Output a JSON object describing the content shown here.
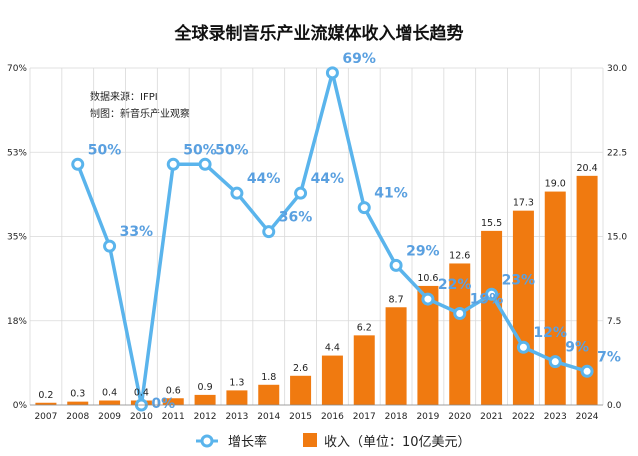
{
  "chart_data": {
    "type": "bar+line",
    "title": "全球录制音乐产业流媒体收入增长趋势",
    "source_lines": [
      "数据来源：IFPI",
      "制图：新音乐产业观察"
    ],
    "categories": [
      "2007",
      "2008",
      "2009",
      "2010",
      "2011",
      "2012",
      "2013",
      "2014",
      "2015",
      "2016",
      "2017",
      "2018",
      "2019",
      "2020",
      "2021",
      "2022",
      "2023",
      "2024"
    ],
    "series": [
      {
        "name": "收入（单位：10亿美元）",
        "kind": "bar",
        "axis": "right",
        "color": "#f07a10",
        "values": [
          0.2,
          0.3,
          0.4,
          0.4,
          0.6,
          0.9,
          1.3,
          1.8,
          2.6,
          4.4,
          6.2,
          8.7,
          10.6,
          12.6,
          15.5,
          17.3,
          19.0,
          20.4
        ],
        "labels": [
          "0.2",
          "0.3",
          "0.4",
          "0.4",
          "0.6",
          "0.9",
          "1.3",
          "1.8",
          "2.6",
          "4.4",
          "6.2",
          "8.7",
          "10.6",
          "12.6",
          "15.5",
          "17.3",
          "19.0",
          "20.4"
        ]
      },
      {
        "name": "增长率",
        "kind": "line",
        "axis": "left",
        "color": "#5ab4ec",
        "values": [
          null,
          50,
          33,
          0,
          50,
          50,
          44,
          36,
          44,
          69,
          41,
          29,
          22,
          19,
          23,
          12,
          9,
          7
        ],
        "labels": [
          "",
          "50%",
          "33%",
          "0%",
          "50%",
          "50%",
          "44%",
          "36%",
          "44%",
          "69%",
          "41%",
          "29%",
          "22%",
          "19%",
          "23%",
          "12%",
          "9%",
          "7%"
        ]
      }
    ],
    "y_left": {
      "min": 0,
      "max": 70,
      "tick_values": [
        0,
        17.5,
        35,
        52.5,
        70
      ],
      "tick_labels": [
        "0%",
        "18%",
        "35%",
        "53%",
        "70%"
      ]
    },
    "y_right": {
      "min": 0,
      "max": 30,
      "tick_values": [
        0,
        7.5,
        15,
        22.5,
        30
      ],
      "tick_labels": [
        "0.0",
        "7.5",
        "15.0",
        "22.5",
        "30.0"
      ]
    },
    "grid": true,
    "legend_position": "bottom"
  }
}
